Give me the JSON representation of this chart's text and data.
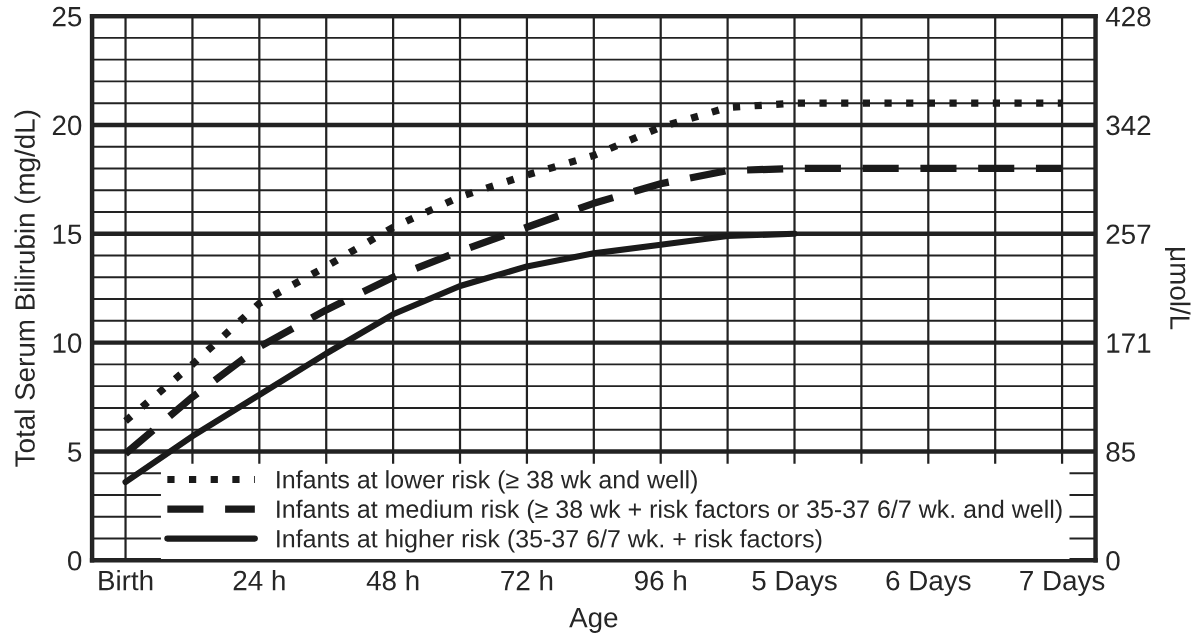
{
  "chart_data": {
    "type": "line",
    "xlabel": "Age",
    "ylabel": "Total Serum Bilirubin (mg/dL)",
    "y2label": "μmol/L",
    "categories": [
      "Birth",
      null,
      "24 h",
      null,
      "48 h",
      null,
      "72 h",
      null,
      "96 h",
      null,
      "5 Days",
      null,
      "6 Days",
      null,
      "7 Days"
    ],
    "series": [
      {
        "name": "Infants at lower risk (≥ 38 wk and well)",
        "color": "#1a1a1a",
        "line_style": "dotted",
        "values": [
          6.4,
          9.0,
          11.8,
          13.5,
          15.3,
          16.7,
          17.7,
          18.6,
          19.9,
          20.8,
          21.0,
          21.0,
          21.0,
          21.0,
          21.0
        ]
      },
      {
        "name": "Infants at medium risk (≥ 38 wk + risk factors or 35-37 6/7 wk. and well)",
        "color": "#1a1a1a",
        "line_style": "dashed",
        "values": [
          4.9,
          7.5,
          9.8,
          11.5,
          13.0,
          14.2,
          15.3,
          16.4,
          17.3,
          17.9,
          18.0,
          18.0,
          18.0,
          18.0,
          18.0
        ]
      },
      {
        "name": "Infants at higher risk (35-37 6/7 wk. + risk factors)",
        "color": "#1a1a1a",
        "line_style": "solid",
        "values": [
          3.6,
          5.7,
          7.6,
          9.5,
          11.3,
          12.6,
          13.5,
          14.1,
          14.5,
          14.9,
          15.0,
          null,
          null,
          null,
          null
        ]
      }
    ],
    "ylim": [
      0,
      25
    ],
    "yticks": [
      0,
      {
        "value": 1,
        "label": null
      },
      {
        "value": 2,
        "label": null
      },
      {
        "value": 3,
        "label": null
      },
      {
        "value": 4,
        "label": null
      },
      5,
      {
        "value": 6,
        "label": null
      },
      {
        "value": 7,
        "label": null
      },
      {
        "value": 8,
        "label": null
      },
      {
        "value": 9,
        "label": null
      },
      10,
      {
        "value": 11,
        "label": null
      },
      {
        "value": 12,
        "label": null
      },
      {
        "value": 13,
        "label": null
      },
      {
        "value": 14,
        "label": null
      },
      15,
      {
        "value": 16,
        "label": null
      },
      {
        "value": 17,
        "label": null
      },
      {
        "value": 18,
        "label": null
      },
      {
        "value": 19,
        "label": null
      },
      20,
      {
        "value": 21,
        "label": null
      },
      {
        "value": 22,
        "label": null
      },
      {
        "value": 23,
        "label": null
      },
      {
        "value": 24,
        "label": null
      },
      25
    ],
    "y2lim": [
      0,
      427.5
    ],
    "y2ticks": [
      0,
      {
        "value": 85.5,
        "label": "85"
      },
      171,
      {
        "value": 256.5,
        "label": "257"
      },
      342,
      {
        "value": 427.5,
        "label": "428"
      }
    ],
    "grid": true,
    "legend": "bottom left",
    "marker": "none"
  }
}
